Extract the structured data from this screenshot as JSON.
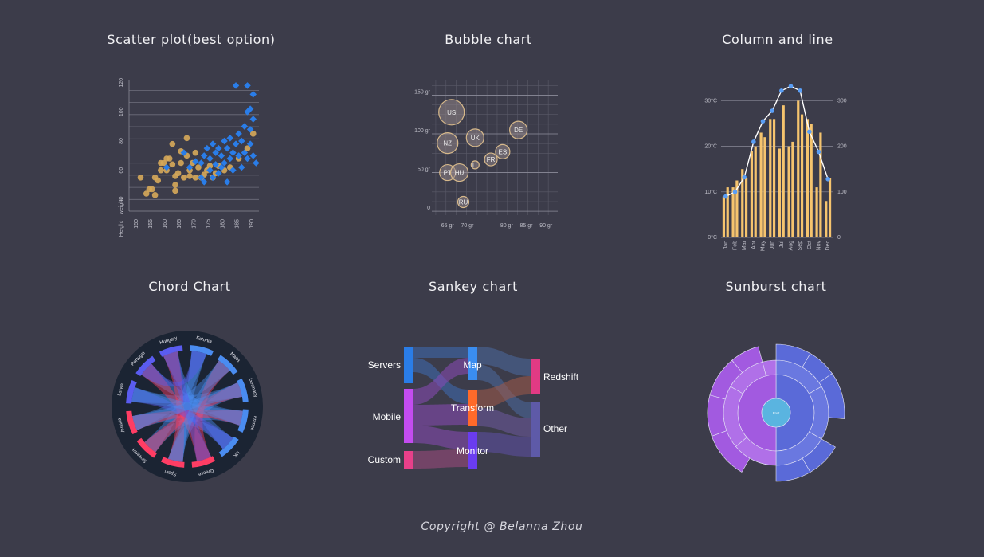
{
  "titles": {
    "scatter": "Scatter plot(best option)",
    "bubble": "Bubble chart",
    "column_line": "Column and line",
    "chord": "Chord Chart",
    "sankey": "Sankey chart",
    "sunburst": "Sunburst chart"
  },
  "copyright": "Copyright @ Belanna Zhou",
  "colors": {
    "background": "#3c3c4a",
    "gold": "#d6a85a",
    "blue": "#2a7de8",
    "bar": "#f5c46e",
    "line": "#ffffff",
    "point": "#5a9ef5"
  },
  "chart_data": [
    {
      "id": "scatter",
      "type": "scatter",
      "xlabel": "Height",
      "ylabel": "weight",
      "x_ticks": [
        "150",
        "155",
        "160",
        "165",
        "170",
        "175",
        "180",
        "185",
        "190"
      ],
      "y_ticks": [
        "40",
        "60",
        "80",
        "100",
        "120"
      ],
      "xlim": [
        147,
        192
      ],
      "ylim": [
        32,
        122
      ],
      "series": [
        {
          "marker": "circle",
          "points": [
            [
              151,
              55
            ],
            [
              153,
              44
            ],
            [
              154,
              47
            ],
            [
              155,
              47
            ],
            [
              156,
              43
            ],
            [
              156,
              55
            ],
            [
              157,
              53
            ],
            [
              158,
              60
            ],
            [
              158,
              65
            ],
            [
              159,
              65
            ],
            [
              160,
              60
            ],
            [
              160,
              68
            ],
            [
              161,
              68
            ],
            [
              162,
              78
            ],
            [
              162,
              64
            ],
            [
              163,
              56
            ],
            [
              163,
              50
            ],
            [
              163,
              46
            ],
            [
              164,
              58
            ],
            [
              165,
              65
            ],
            [
              165,
              73
            ],
            [
              166,
              55
            ],
            [
              167,
              70
            ],
            [
              167,
              82
            ],
            [
              168,
              60
            ],
            [
              168,
              56
            ],
            [
              169,
              65
            ],
            [
              170,
              72
            ],
            [
              170,
              55
            ],
            [
              171,
              62
            ],
            [
              172,
              55
            ],
            [
              173,
              57
            ],
            [
              174,
              60
            ],
            [
              175,
              63
            ],
            [
              176,
              55
            ],
            [
              177,
              58
            ],
            [
              178,
              63
            ],
            [
              180,
              60
            ],
            [
              182,
              62
            ],
            [
              185,
              68
            ],
            [
              188,
              75
            ],
            [
              190,
              85
            ]
          ]
        },
        {
          "marker": "diamond",
          "points": [
            [
              160,
              62
            ],
            [
              166,
              72
            ],
            [
              168,
              62
            ],
            [
              170,
              66
            ],
            [
              172,
              65
            ],
            [
              172,
              55
            ],
            [
              173,
              70
            ],
            [
              173,
              52
            ],
            [
              174,
              75
            ],
            [
              175,
              60
            ],
            [
              175,
              68
            ],
            [
              176,
              78
            ],
            [
              176,
              55
            ],
            [
              177,
              72
            ],
            [
              177,
              64
            ],
            [
              178,
              58
            ],
            [
              178,
              75
            ],
            [
              179,
              62
            ],
            [
              179,
              70
            ],
            [
              180,
              80
            ],
            [
              180,
              65
            ],
            [
              181,
              75
            ],
            [
              181,
              52
            ],
            [
              182,
              68
            ],
            [
              182,
              82
            ],
            [
              183,
              60
            ],
            [
              183,
              72
            ],
            [
              184,
              78
            ],
            [
              185,
              85
            ],
            [
              185,
              70
            ],
            [
              186,
              62
            ],
            [
              186,
              80
            ],
            [
              187,
              90
            ],
            [
              187,
              72
            ],
            [
              188,
              100
            ],
            [
              188,
              68
            ],
            [
              189,
              88
            ],
            [
              189,
              78
            ],
            [
              190,
              95
            ],
            [
              190,
              70
            ],
            [
              184,
              118
            ],
            [
              188,
              118
            ],
            [
              190,
              112
            ],
            [
              189,
              102
            ],
            [
              191,
              65
            ]
          ]
        }
      ]
    },
    {
      "id": "bubble",
      "type": "scatter",
      "x_ticks": [
        "65 gr",
        "70 gr",
        "80 gr",
        "85 gr",
        "90 gr"
      ],
      "x_tick_values": [
        65,
        70,
        80,
        85,
        90
      ],
      "y_ticks": [
        "0",
        "50 gr",
        "100 gr",
        "150 gr"
      ],
      "y_tick_values": [
        0,
        50,
        100,
        150
      ],
      "xlim": [
        61,
        93
      ],
      "ylim": [
        -5,
        170
      ],
      "points": [
        {
          "label": "US",
          "x": 66,
          "y": 128,
          "r": 16
        },
        {
          "label": "NZ",
          "x": 65,
          "y": 88,
          "r": 13
        },
        {
          "label": "UK",
          "x": 72,
          "y": 95,
          "r": 11
        },
        {
          "label": "DE",
          "x": 83,
          "y": 105,
          "r": 11
        },
        {
          "label": "ES",
          "x": 79,
          "y": 77,
          "r": 9
        },
        {
          "label": "FR",
          "x": 76,
          "y": 67,
          "r": 8
        },
        {
          "label": "IT",
          "x": 72,
          "y": 60,
          "r": 5
        },
        {
          "label": "PT",
          "x": 65,
          "y": 50,
          "r": 10
        },
        {
          "label": "HU",
          "x": 68,
          "y": 50,
          "r": 11
        },
        {
          "label": "RU",
          "x": 69,
          "y": 12,
          "r": 7
        }
      ]
    },
    {
      "id": "column_line",
      "type": "bar",
      "categories": [
        "Jan",
        "Feb",
        "Mar",
        "Apr",
        "May",
        "Jun",
        "Jul",
        "Aug",
        "Sep",
        "Oct",
        "Nov",
        "Dec"
      ],
      "left_ticks": [
        "0°C",
        "10°C",
        "20°C",
        "30°C"
      ],
      "right_ticks": [
        "0",
        "100",
        "200",
        "300"
      ],
      "ylim": [
        0,
        32
      ],
      "y2lim": [
        0,
        320
      ],
      "series": [
        {
          "type": "bar",
          "values": [
            [
              9,
              11
            ],
            [
              11,
              12.5
            ],
            [
              15,
              13
            ],
            [
              19,
              20
            ],
            [
              23,
              22
            ],
            [
              26,
              26
            ],
            [
              19.5,
              29
            ],
            [
              20,
              21
            ],
            [
              30,
              27
            ],
            [
              26,
              25
            ],
            [
              11,
              23
            ],
            [
              8,
              13
            ]
          ]
        },
        {
          "type": "line",
          "values": [
            90,
            100,
            132,
            210,
            255,
            278,
            322,
            332,
            322,
            232,
            188,
            128
          ]
        }
      ]
    },
    {
      "id": "chord",
      "type": "chord",
      "labels": [
        "Estonia",
        "Malta",
        "Germany",
        "France",
        "UK",
        "Greece",
        "Spain",
        "Slovenia",
        "Austria",
        "Latvia",
        "Portugal",
        "Hungary"
      ]
    },
    {
      "id": "sankey",
      "type": "sankey",
      "nodes": [
        "Servers",
        "Mobile",
        "Custom",
        "Map",
        "Transform",
        "Monitor",
        "Redshift",
        "Other"
      ]
    },
    {
      "id": "sunburst",
      "type": "sunburst",
      "center": "Root"
    }
  ]
}
